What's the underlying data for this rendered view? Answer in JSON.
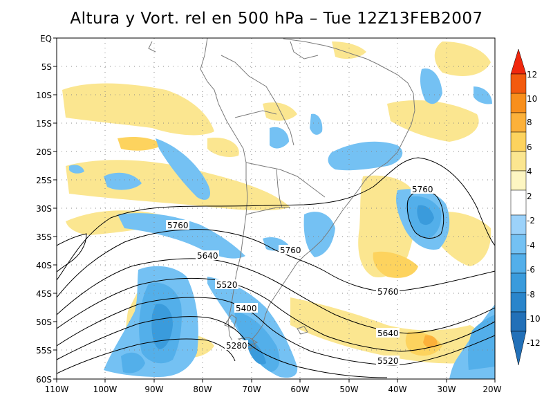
{
  "title": "Altura y Vort. rel en 500 hPa – Tue 12Z13FEB2007",
  "colors": {
    "land_outline": "#7a7a7a",
    "contour": "#000000",
    "grid": "#888888"
  },
  "axes": {
    "lat_labels": [
      "EQ",
      "5S",
      "10S",
      "15S",
      "20S",
      "25S",
      "30S",
      "35S",
      "40S",
      "45S",
      "50S",
      "55S",
      "60S"
    ],
    "lon_labels": [
      "110W",
      "100W",
      "90W",
      "80W",
      "70W",
      "60W",
      "50W",
      "40W",
      "30W",
      "20W"
    ]
  },
  "colorbar": {
    "labels": [
      "12",
      "10",
      "8",
      "6",
      "4",
      "2",
      "-2",
      "-4",
      "-6",
      "-8",
      "-10",
      "-12"
    ],
    "colors": [
      "#f0270d",
      "#f35a0e",
      "#f88f1c",
      "#fcb13a",
      "#fdd35e",
      "#fbe690",
      "#fdf6c2",
      "#ffffff",
      "#9cd2fa",
      "#74c1f3",
      "#53afea",
      "#3a9bdc",
      "#2a85cb",
      "#2270b8"
    ]
  },
  "contour_labels": [
    "5760",
    "5760",
    "5640",
    "5760",
    "5520",
    "5400",
    "5760",
    "5280",
    "5640",
    "5520"
  ]
}
